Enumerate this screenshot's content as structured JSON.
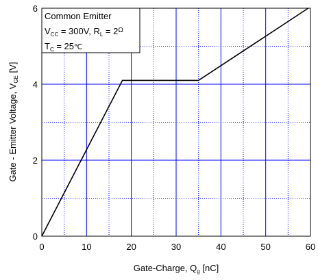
{
  "chart_data": {
    "type": "line",
    "title": "",
    "xlabel": {
      "main": "Gate-Charge, Q",
      "sub": "g",
      "unit": " [nC]"
    },
    "ylabel": {
      "main": "Gate - Emitter Voltage, V",
      "sub": "GE",
      "unit": " [V]"
    },
    "xlim": [
      0,
      60
    ],
    "ylim": [
      0,
      6
    ],
    "x_ticks": [
      0,
      10,
      20,
      30,
      40,
      50,
      60
    ],
    "y_ticks": [
      0,
      2,
      4,
      6
    ],
    "x_minor_step": 5,
    "y_minor_step": 1,
    "grid": true,
    "colors": {
      "line": "#000000",
      "grid_major": "#0000ff",
      "grid_minor": "#0000ff",
      "frame": "#000000"
    },
    "series": [
      {
        "x": [
          0,
          18,
          35,
          59.5
        ],
        "y": [
          0,
          4.1,
          4.1,
          6
        ]
      }
    ],
    "annotation": {
      "position": "top-left",
      "line1": "Common Emitter",
      "line2": {
        "a": "V",
        "a_sub": "CC",
        "b": " = 300V, R",
        "b_sub": "L",
        "c": " = 2",
        "c_sym": "Ω"
      },
      "line3": {
        "a": "T",
        "a_sub": "C",
        "b": " = 25",
        "b_sym": "℃"
      }
    }
  }
}
